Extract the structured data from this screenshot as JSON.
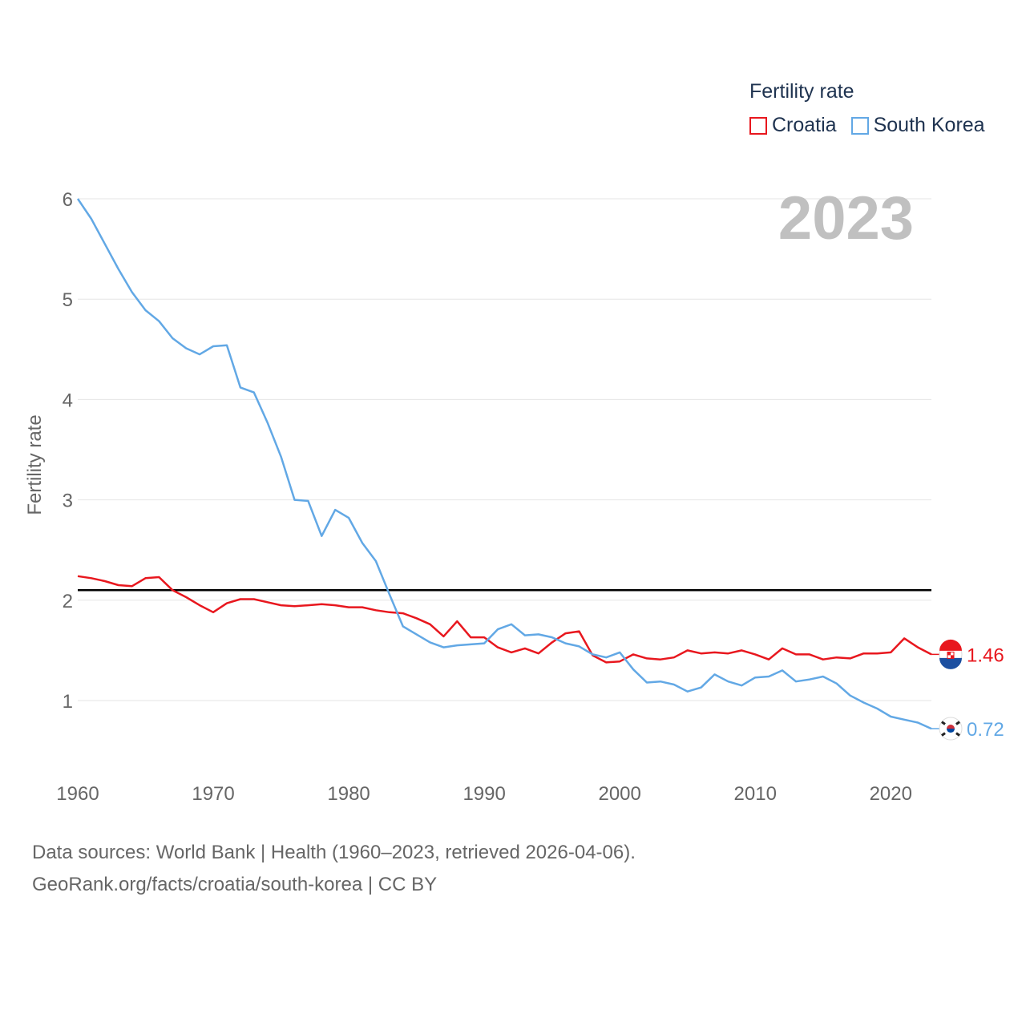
{
  "legend": {
    "title": "Fertility rate",
    "items": [
      {
        "label": "Croatia",
        "color": "#e8171e"
      },
      {
        "label": "South Korea",
        "color": "#62a8e5"
      }
    ]
  },
  "source": {
    "line1": "Data sources: World Bank | Health (1960–2023, retrieved 2026-04-06).",
    "line2": "GeoRank.org/facts/croatia/south-korea | CC BY"
  },
  "chart_data": {
    "type": "line",
    "title": "Fertility rate",
    "year_label": "2023",
    "xlabel": "",
    "ylabel": "Fertility rate",
    "xlim": [
      1960,
      2023
    ],
    "ylim": [
      0.4,
      6
    ],
    "x_ticks": [
      1960,
      1970,
      1980,
      1990,
      2000,
      2010,
      2020
    ],
    "y_ticks": [
      1,
      2,
      3,
      4,
      5,
      6
    ],
    "grid": true,
    "reference_line": {
      "value": 2.1,
      "color": "#000000"
    },
    "x": [
      1960,
      1961,
      1962,
      1963,
      1964,
      1965,
      1966,
      1967,
      1968,
      1969,
      1970,
      1971,
      1972,
      1973,
      1974,
      1975,
      1976,
      1977,
      1978,
      1979,
      1980,
      1981,
      1982,
      1983,
      1984,
      1985,
      1986,
      1987,
      1988,
      1989,
      1990,
      1991,
      1992,
      1993,
      1994,
      1995,
      1996,
      1997,
      1998,
      1999,
      2000,
      2001,
      2002,
      2003,
      2004,
      2005,
      2006,
      2007,
      2008,
      2009,
      2010,
      2011,
      2012,
      2013,
      2014,
      2015,
      2016,
      2017,
      2018,
      2019,
      2020,
      2021,
      2022,
      2023
    ],
    "series": [
      {
        "name": "Croatia",
        "color": "#e8171e",
        "end_label": "1.46",
        "values": [
          2.24,
          2.22,
          2.19,
          2.15,
          2.14,
          2.22,
          2.23,
          2.1,
          2.03,
          1.95,
          1.88,
          1.97,
          2.01,
          2.01,
          1.98,
          1.95,
          1.94,
          1.95,
          1.96,
          1.95,
          1.93,
          1.93,
          1.9,
          1.88,
          1.87,
          1.82,
          1.76,
          1.64,
          1.79,
          1.63,
          1.63,
          1.53,
          1.48,
          1.52,
          1.47,
          1.58,
          1.67,
          1.69,
          1.45,
          1.38,
          1.39,
          1.46,
          1.42,
          1.41,
          1.43,
          1.5,
          1.47,
          1.48,
          1.47,
          1.5,
          1.46,
          1.41,
          1.52,
          1.46,
          1.46,
          1.41,
          1.43,
          1.42,
          1.47,
          1.47,
          1.48,
          1.62,
          1.53,
          1.46
        ]
      },
      {
        "name": "South Korea",
        "color": "#62a8e5",
        "end_label": "0.72",
        "values": [
          6.0,
          5.8,
          5.55,
          5.3,
          5.07,
          4.89,
          4.78,
          4.61,
          4.51,
          4.45,
          4.53,
          4.54,
          4.12,
          4.07,
          3.77,
          3.43,
          3.0,
          2.99,
          2.64,
          2.9,
          2.82,
          2.57,
          2.39,
          2.06,
          1.74,
          1.66,
          1.58,
          1.53,
          1.55,
          1.56,
          1.57,
          1.71,
          1.76,
          1.65,
          1.66,
          1.63,
          1.57,
          1.54,
          1.46,
          1.43,
          1.48,
          1.31,
          1.18,
          1.19,
          1.16,
          1.09,
          1.13,
          1.26,
          1.19,
          1.15,
          1.23,
          1.24,
          1.3,
          1.19,
          1.21,
          1.24,
          1.17,
          1.05,
          0.98,
          0.92,
          0.84,
          0.81,
          0.78,
          0.72
        ]
      }
    ]
  }
}
